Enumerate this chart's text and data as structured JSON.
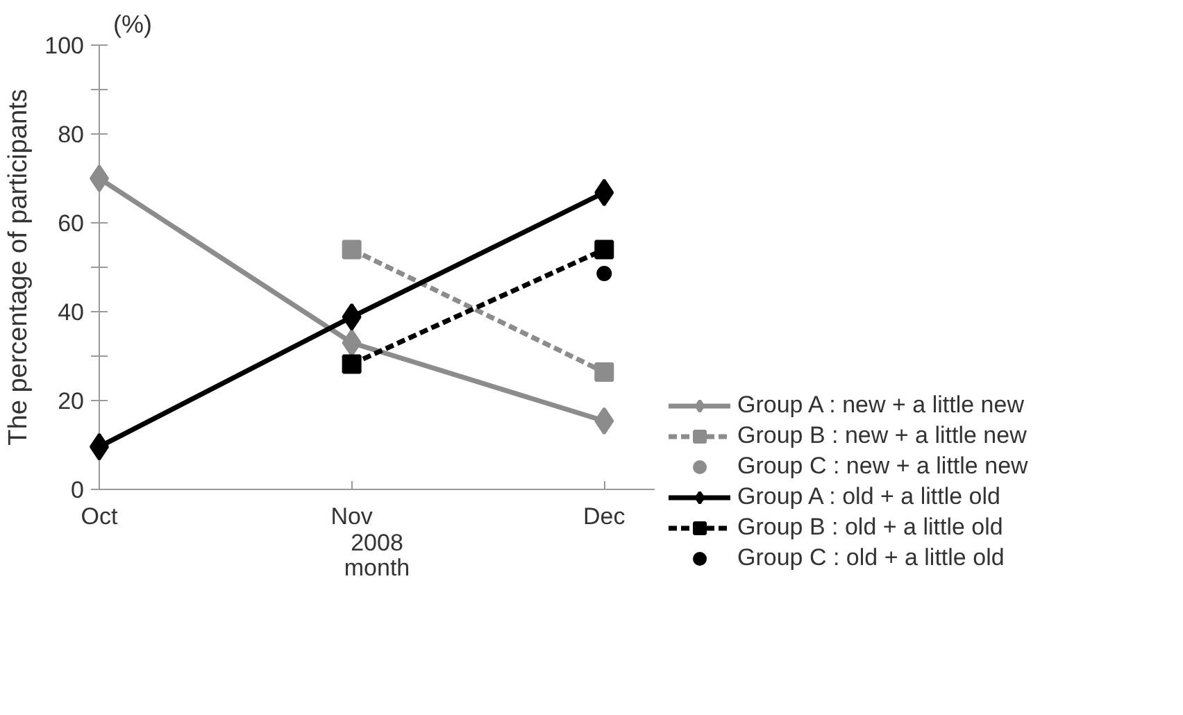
{
  "chart_data": {
    "type": "line",
    "ylabel": "The percentage of participants",
    "xlabel": "month",
    "annotations": [
      "(%)",
      "2008"
    ],
    "categories": [
      "Oct",
      "Nov",
      "Dec"
    ],
    "ylim": [
      0,
      100
    ],
    "yticks": [
      0,
      {
        "value": 10,
        "label": null
      },
      20,
      {
        "value": 30,
        "label": null
      },
      40,
      {
        "value": 50,
        "label": null
      },
      60,
      {
        "value": 70,
        "label": null
      },
      80,
      {
        "value": 90,
        "label": null
      },
      100
    ],
    "grid": false,
    "legend": "right",
    "series": [
      {
        "name": "Group A : new + a little new",
        "color": "#8c8c8c",
        "marker": "diamond",
        "line_style": "solid",
        "values": [
          70,
          33,
          15.4
        ]
      },
      {
        "name": "Group B : new + a little new",
        "color": "#8c8c8c",
        "marker": "square",
        "line_style": "dashed",
        "values": [
          null,
          54,
          26.4
        ]
      },
      {
        "name": "Group C : new + a little new",
        "type": "scatter",
        "color": "#8c8c8c",
        "marker": "circle",
        "values": [
          null,
          null,
          null
        ]
      },
      {
        "name": "Group A : old + a little old",
        "color": "#000000",
        "marker": "diamond",
        "line_style": "solid",
        "values": [
          9.6,
          38.8,
          66.8
        ]
      },
      {
        "name": "Group B : old + a little old",
        "color": "#000000",
        "marker": "square",
        "line_style": "dashed",
        "values": [
          null,
          28.2,
          54
        ]
      },
      {
        "name": "Group C : old + a little old",
        "type": "scatter",
        "color": "#000000",
        "marker": "circle",
        "values": [
          null,
          null,
          48.6
        ]
      }
    ]
  }
}
